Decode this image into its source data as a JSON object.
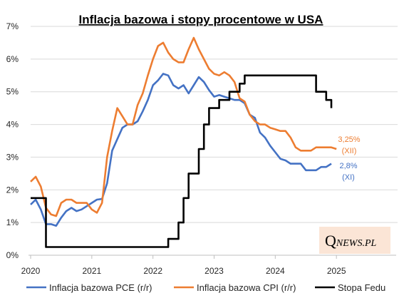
{
  "chart_data": {
    "type": "line",
    "title": "Inflacja bazowa i stopy procentowe w USA",
    "xlabel": "",
    "ylabel": "",
    "x_ticks": [
      "2020",
      "2021",
      "2022",
      "2023",
      "2024",
      "2025"
    ],
    "x_range": [
      2020.0,
      2026.0
    ],
    "ylim": [
      0,
      7
    ],
    "y_ticks": [
      "0%",
      "1%",
      "2%",
      "3%",
      "4%",
      "5%",
      "6%",
      "7%"
    ],
    "grid": "horizontal",
    "legend_position": "bottom",
    "series": [
      {
        "name": "Inflacja bazowa PCE (r/r)",
        "color": "#4472c4",
        "x": [
          2020.0,
          2020.083,
          2020.167,
          2020.25,
          2020.333,
          2020.417,
          2020.5,
          2020.583,
          2020.667,
          2020.75,
          2020.833,
          2020.917,
          2021.0,
          2021.083,
          2021.167,
          2021.25,
          2021.333,
          2021.417,
          2021.5,
          2021.583,
          2021.667,
          2021.75,
          2021.833,
          2021.917,
          2022.0,
          2022.083,
          2022.167,
          2022.25,
          2022.333,
          2022.417,
          2022.5,
          2022.583,
          2022.667,
          2022.75,
          2022.833,
          2022.917,
          2023.0,
          2023.083,
          2023.167,
          2023.25,
          2023.333,
          2023.417,
          2023.5,
          2023.583,
          2023.667,
          2023.75,
          2023.833,
          2023.917,
          2024.0,
          2024.083,
          2024.167,
          2024.25,
          2024.333,
          2024.417,
          2024.5,
          2024.583,
          2024.667,
          2024.75,
          2024.833,
          2024.917
        ],
        "values": [
          1.55,
          1.7,
          1.4,
          0.95,
          0.95,
          0.9,
          1.15,
          1.35,
          1.45,
          1.35,
          1.4,
          1.5,
          1.6,
          1.7,
          1.72,
          2.2,
          3.2,
          3.55,
          3.9,
          4.0,
          4.0,
          4.1,
          4.4,
          4.75,
          5.2,
          5.35,
          5.55,
          5.5,
          5.2,
          5.1,
          5.2,
          4.95,
          5.2,
          5.45,
          5.3,
          5.05,
          4.85,
          4.9,
          4.85,
          4.8,
          4.75,
          4.75,
          4.65,
          4.3,
          4.2,
          3.75,
          3.6,
          3.35,
          3.15,
          2.95,
          2.9,
          2.8,
          2.8,
          2.8,
          2.6,
          2.6,
          2.6,
          2.7,
          2.7,
          2.8
        ]
      },
      {
        "name": "Inflacja bazowa CPI (r/r)",
        "color": "#ed7d31",
        "x": [
          2020.0,
          2020.083,
          2020.167,
          2020.25,
          2020.333,
          2020.417,
          2020.5,
          2020.583,
          2020.667,
          2020.75,
          2020.833,
          2020.917,
          2021.0,
          2021.083,
          2021.167,
          2021.25,
          2021.333,
          2021.417,
          2021.5,
          2021.583,
          2021.667,
          2021.75,
          2021.833,
          2021.917,
          2022.0,
          2022.083,
          2022.167,
          2022.25,
          2022.333,
          2022.417,
          2022.5,
          2022.583,
          2022.667,
          2022.75,
          2022.833,
          2022.917,
          2023.0,
          2023.083,
          2023.167,
          2023.25,
          2023.333,
          2023.417,
          2023.5,
          2023.583,
          2023.667,
          2023.75,
          2023.833,
          2023.917,
          2024.0,
          2024.083,
          2024.167,
          2024.25,
          2024.333,
          2024.417,
          2024.5,
          2024.583,
          2024.667,
          2024.75,
          2024.833,
          2024.917,
          2025.0
        ],
        "values": [
          2.25,
          2.4,
          2.1,
          1.45,
          1.25,
          1.2,
          1.6,
          1.7,
          1.7,
          1.6,
          1.6,
          1.6,
          1.4,
          1.3,
          1.6,
          3.0,
          3.8,
          4.5,
          4.25,
          4.0,
          4.0,
          4.6,
          4.95,
          5.5,
          6.0,
          6.4,
          6.5,
          6.2,
          6.0,
          5.9,
          5.9,
          6.3,
          6.65,
          6.3,
          6.0,
          5.7,
          5.55,
          5.5,
          5.6,
          5.5,
          5.3,
          4.8,
          4.7,
          4.3,
          4.1,
          4.0,
          4.0,
          3.9,
          3.85,
          3.8,
          3.8,
          3.6,
          3.3,
          3.2,
          3.2,
          3.2,
          3.3,
          3.3,
          3.3,
          3.3,
          3.25
        ]
      },
      {
        "name": "Stopa Fedu",
        "color": "#000000",
        "step": true,
        "x": [
          2020.0,
          2020.167,
          2020.25,
          2022.167,
          2022.25,
          2022.333,
          2022.417,
          2022.5,
          2022.583,
          2022.667,
          2022.75,
          2022.833,
          2022.917,
          2023.0,
          2023.083,
          2023.25,
          2023.417,
          2023.5,
          2024.667,
          2024.75,
          2024.833,
          2024.917
        ],
        "values": [
          1.75,
          1.75,
          0.25,
          0.25,
          0.5,
          0.5,
          1.0,
          1.75,
          2.5,
          2.5,
          3.25,
          4.0,
          4.5,
          4.5,
          4.75,
          5.0,
          5.25,
          5.5,
          5.0,
          5.0,
          4.75,
          4.5
        ]
      }
    ],
    "annotations": [
      {
        "text": "3,25%",
        "color": "#ed7d31"
      },
      {
        "text": "(XII)",
        "color": "#ed7d31"
      },
      {
        "text": "2,8%",
        "color": "#4472c4"
      },
      {
        "text": "(XI)",
        "color": "#4472c4"
      }
    ],
    "source_logo": {
      "q": "Q",
      "rest": "NEWS.PL"
    }
  }
}
